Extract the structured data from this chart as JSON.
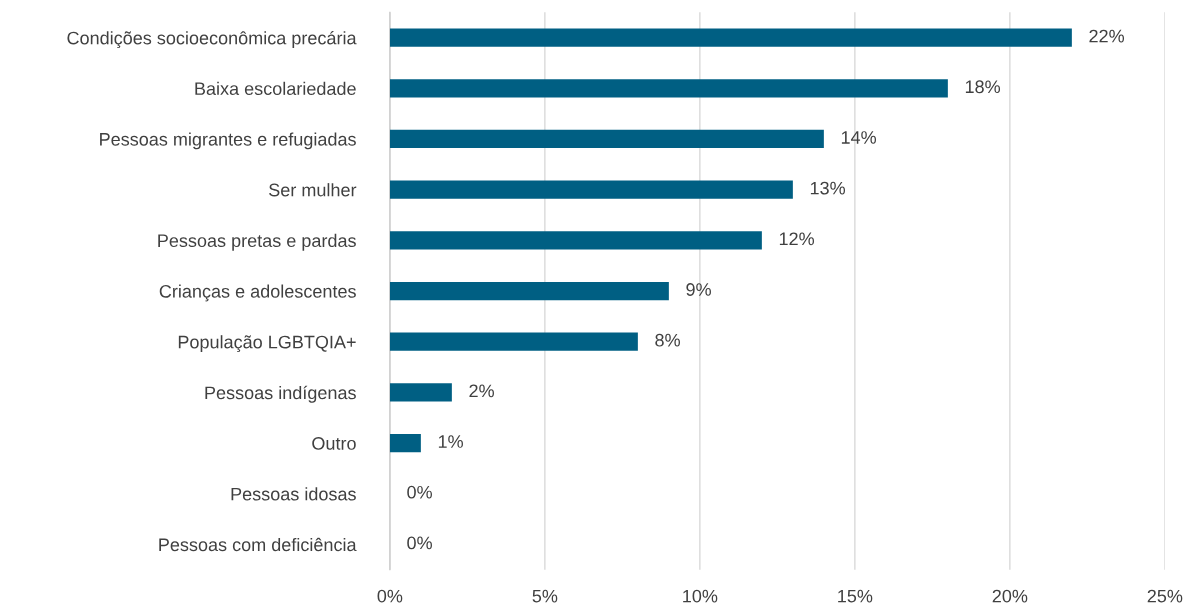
{
  "chart_data": {
    "type": "bar",
    "orientation": "horizontal",
    "categories": [
      "Condições socioeconômica precária",
      "Baixa escolariedade",
      "Pessoas migrantes e refugiadas",
      "Ser mulher",
      "Pessoas pretas e pardas",
      "Crianças e adolescentes",
      "População LGBTQIA+",
      "Pessoas indígenas",
      "Outro",
      "Pessoas idosas",
      "Pessoas com deficiência"
    ],
    "values": [
      22,
      18,
      14,
      13,
      12,
      9,
      8,
      2,
      1,
      0,
      0
    ],
    "value_labels": [
      "22%",
      "18%",
      "14%",
      "13%",
      "12%",
      "9%",
      "8%",
      "2%",
      "1%",
      "0%",
      "0%"
    ],
    "color": "#005f83",
    "xlim": [
      0,
      25
    ],
    "xticks": [
      {
        "value": 0,
        "label": "0%"
      },
      {
        "value": 5,
        "label": "5%"
      },
      {
        "value": 10,
        "label": "10%"
      },
      {
        "value": 15,
        "label": "15%"
      },
      {
        "value": 20,
        "label": "20%"
      },
      {
        "value": 25,
        "label": "25%"
      }
    ],
    "grid": "x",
    "legend": false
  }
}
